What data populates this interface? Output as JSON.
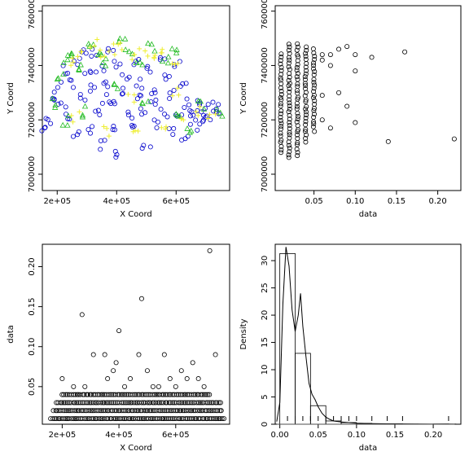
{
  "chart_data": [
    {
      "type": "scatter",
      "xlabel": "X Coord",
      "ylabel": "Y Coord",
      "xlim": [
        150000,
        780000
      ],
      "ylim": [
        6940000,
        7620000
      ],
      "xticks": {
        "values": [
          200000,
          400000,
          600000,
          800000
        ],
        "labels": [
          "2e+05",
          "4e+05",
          "6e+05",
          "8e+05"
        ]
      },
      "yticks": {
        "values": [
          7000000,
          7200000,
          7400000,
          7600000
        ],
        "labels": [
          "7000000",
          "7200000",
          "7400000",
          "7600000"
        ]
      },
      "colors": {
        "circle": "#0000cc",
        "triangle": "#22bb22",
        "plus": "#eeee33"
      },
      "series": [
        {
          "marker": "circle",
          "points": [
            [
              160000,
              7170000
            ],
            [
              175000,
              7190000
            ],
            [
              185000,
              7290000
            ],
            [
              200000,
              7320000
            ],
            [
              215000,
              7260000
            ],
            [
              230000,
              7380000
            ],
            [
              240000,
              7210000
            ],
            [
              255000,
              7330000
            ],
            [
              265000,
              7150000
            ],
            [
              270000,
              7420000
            ],
            [
              280000,
              7280000
            ],
            [
              290000,
              7460000
            ],
            [
              300000,
              7360000
            ],
            [
              310000,
              7170000
            ],
            [
              320000,
              7310000
            ],
            [
              330000,
              7440000
            ],
            [
              340000,
              7220000
            ],
            [
              345000,
              7390000
            ],
            [
              355000,
              7110000
            ],
            [
              365000,
              7280000
            ],
            [
              370000,
              7340000
            ],
            [
              380000,
              7470000
            ],
            [
              390000,
              7180000
            ],
            [
              395000,
              7250000
            ],
            [
              405000,
              7400000
            ],
            [
              410000,
              7080000
            ],
            [
              420000,
              7300000
            ],
            [
              430000,
              7350000
            ],
            [
              440000,
              7210000
            ],
            [
              450000,
              7160000
            ],
            [
              460000,
              7420000
            ],
            [
              470000,
              7280000
            ],
            [
              480000,
              7330000
            ],
            [
              490000,
              7240000
            ],
            [
              500000,
              7100000
            ],
            [
              510000,
              7380000
            ],
            [
              520000,
              7270000
            ],
            [
              530000,
              7310000
            ],
            [
              540000,
              7190000
            ],
            [
              550000,
              7440000
            ],
            [
              560000,
              7230000
            ],
            [
              570000,
              7360000
            ],
            [
              580000,
              7150000
            ],
            [
              590000,
              7290000
            ],
            [
              600000,
              7410000
            ],
            [
              610000,
              7210000
            ],
            [
              620000,
              7330000
            ],
            [
              630000,
              7130000
            ],
            [
              640000,
              7260000
            ],
            [
              650000,
              7200000
            ],
            [
              660000,
              7240000
            ],
            [
              670000,
              7180000
            ],
            [
              680000,
              7270000
            ],
            [
              690000,
              7210000
            ],
            [
              700000,
              7230000
            ],
            [
              710000,
              7250000
            ],
            [
              725000,
              7220000
            ],
            [
              740000,
              7240000
            ]
          ]
        },
        {
          "marker": "triangle",
          "points": [
            [
              190000,
              7260000
            ],
            [
              215000,
              7360000
            ],
            [
              235000,
              7420000
            ],
            [
              260000,
              7450000
            ],
            [
              285000,
              7390000
            ],
            [
              310000,
              7470000
            ],
            [
              340000,
              7450000
            ],
            [
              365000,
              7410000
            ],
            [
              420000,
              7490000
            ],
            [
              445000,
              7460000
            ],
            [
              480000,
              7410000
            ],
            [
              520000,
              7470000
            ],
            [
              560000,
              7420000
            ],
            [
              590000,
              7450000
            ],
            [
              610000,
              7210000
            ],
            [
              650000,
              7170000
            ],
            [
              690000,
              7250000
            ],
            [
              745000,
              7230000
            ],
            [
              230000,
              7200000
            ],
            [
              300000,
              7230000
            ],
            [
              400000,
              7330000
            ],
            [
              500000,
              7260000
            ]
          ]
        },
        {
          "marker": "plus",
          "points": [
            [
              240000,
              7420000
            ],
            [
              280000,
              7440000
            ],
            [
              320000,
              7480000
            ],
            [
              350000,
              7440000
            ],
            [
              380000,
              7460000
            ],
            [
              410000,
              7470000
            ],
            [
              450000,
              7430000
            ],
            [
              490000,
              7450000
            ],
            [
              530000,
              7440000
            ],
            [
              560000,
              7460000
            ],
            [
              600000,
              7420000
            ],
            [
              630000,
              7200000
            ],
            [
              670000,
              7230000
            ],
            [
              720000,
              7220000
            ],
            [
              560000,
              7160000
            ],
            [
              460000,
              7150000
            ],
            [
              360000,
              7160000
            ],
            [
              260000,
              7210000
            ],
            [
              600000,
              7300000
            ],
            [
              450000,
              7280000
            ]
          ]
        }
      ]
    },
    {
      "type": "scatter",
      "xlabel": "data",
      "ylabel": "Y Coord",
      "xlim": [
        0.003,
        0.228
      ],
      "ylim": [
        6940000,
        7620000
      ],
      "xticks": {
        "values": [
          0.05,
          0.1,
          0.15,
          0.2
        ],
        "labels": [
          "0.05",
          "0.10",
          "0.15",
          "0.20"
        ]
      },
      "yticks": {
        "values": [
          7000000,
          7200000,
          7400000,
          7600000
        ],
        "labels": [
          "7000000",
          "7200000",
          "7400000",
          "7600000"
        ]
      },
      "columns": [
        {
          "x": 0.01,
          "ymin": 7080000,
          "ymax": 7450000
        },
        {
          "x": 0.02,
          "ymin": 7060000,
          "ymax": 7480000
        },
        {
          "x": 0.03,
          "ymin": 7070000,
          "ymax": 7480000
        },
        {
          "x": 0.04,
          "ymin": 7120000,
          "ymax": 7470000
        },
        {
          "x": 0.05,
          "ymin": 7160000,
          "ymax": 7460000
        }
      ],
      "points": [
        [
          0.06,
          7440000
        ],
        [
          0.06,
          7200000
        ],
        [
          0.06,
          7420000
        ],
        [
          0.06,
          7290000
        ],
        [
          0.07,
          7170000
        ],
        [
          0.07,
          7440000
        ],
        [
          0.07,
          7400000
        ],
        [
          0.08,
          7300000
        ],
        [
          0.08,
          7460000
        ],
        [
          0.09,
          7250000
        ],
        [
          0.09,
          7470000
        ],
        [
          0.1,
          7190000
        ],
        [
          0.1,
          7380000
        ],
        [
          0.1,
          7440000
        ],
        [
          0.12,
          7430000
        ],
        [
          0.14,
          7120000
        ],
        [
          0.16,
          7450000
        ],
        [
          0.22,
          7130000
        ]
      ]
    },
    {
      "type": "scatter",
      "xlabel": "X Coord",
      "ylabel": "data",
      "xlim": [
        130000,
        790000
      ],
      "ylim": [
        0.003,
        0.228
      ],
      "xticks": {
        "values": [
          200000,
          400000,
          600000,
          800000
        ],
        "labels": [
          "2e+05",
          "4e+05",
          "6e+05",
          "8e+05"
        ]
      },
      "yticks": {
        "values": [
          0.05,
          0.1,
          0.15,
          0.2
        ],
        "labels": [
          "0.05",
          "0.10",
          "0.15",
          "0.20"
        ]
      },
      "rows": [
        {
          "y": 0.01,
          "xmin": 160000,
          "xmax": 775000
        },
        {
          "y": 0.02,
          "xmin": 170000,
          "xmax": 765000
        },
        {
          "y": 0.03,
          "xmin": 180000,
          "xmax": 760000
        },
        {
          "y": 0.04,
          "xmin": 200000,
          "xmax": 720000
        }
      ],
      "points": [
        [
          200000,
          0.06
        ],
        [
          240000,
          0.05
        ],
        [
          280000,
          0.05
        ],
        [
          310000,
          0.09
        ],
        [
          360000,
          0.06
        ],
        [
          390000,
          0.08
        ],
        [
          400000,
          0.12
        ],
        [
          420000,
          0.05
        ],
        [
          470000,
          0.09
        ],
        [
          480000,
          0.16
        ],
        [
          500000,
          0.07
        ],
        [
          540000,
          0.05
        ],
        [
          560000,
          0.09
        ],
        [
          600000,
          0.05
        ],
        [
          640000,
          0.06
        ],
        [
          660000,
          0.08
        ],
        [
          700000,
          0.05
        ],
        [
          720000,
          0.22
        ],
        [
          740000,
          0.09
        ],
        [
          270000,
          0.14
        ],
        [
          350000,
          0.09
        ],
        [
          440000,
          0.06
        ],
        [
          520000,
          0.05
        ],
        [
          620000,
          0.07
        ],
        [
          380000,
          0.07
        ],
        [
          580000,
          0.06
        ],
        [
          680000,
          0.06
        ]
      ]
    },
    {
      "type": "bar",
      "subtype": "histogram",
      "xlabel": "data",
      "ylabel": "Density",
      "xlim": [
        -0.006,
        0.236
      ],
      "ylim": [
        0,
        33
      ],
      "xticks": {
        "values": [
          0.0,
          0.05,
          0.1,
          0.15,
          0.2
        ],
        "labels": [
          "0.00",
          "0.05",
          "0.10",
          "0.15",
          "0.20"
        ]
      },
      "yticks": {
        "values": [
          0,
          5,
          10,
          15,
          20,
          25,
          30
        ],
        "labels": [
          "0",
          "5",
          "10",
          "15",
          "20",
          "25",
          "30"
        ]
      },
      "bins": [
        {
          "from": 0.0,
          "to": 0.02,
          "density": 31.3
        },
        {
          "from": 0.02,
          "to": 0.04,
          "density": 13.0
        },
        {
          "from": 0.04,
          "to": 0.06,
          "density": 3.4
        },
        {
          "from": 0.06,
          "to": 0.08,
          "density": 0.6
        },
        {
          "from": 0.08,
          "to": 0.1,
          "density": 0.3
        },
        {
          "from": 0.1,
          "to": 0.12,
          "density": 0.15
        },
        {
          "from": 0.12,
          "to": 0.14,
          "density": 0.05
        },
        {
          "from": 0.14,
          "to": 0.16,
          "density": 0.08
        },
        {
          "from": 0.16,
          "to": 0.18,
          "density": 0.03
        },
        {
          "from": 0.18,
          "to": 0.2,
          "density": 0.02
        },
        {
          "from": 0.2,
          "to": 0.22,
          "density": 0.04
        }
      ],
      "density_curve": [
        [
          -0.004,
          0.5
        ],
        [
          0.0,
          4
        ],
        [
          0.004,
          22
        ],
        [
          0.008,
          32.5
        ],
        [
          0.012,
          29
        ],
        [
          0.016,
          21
        ],
        [
          0.02,
          17
        ],
        [
          0.024,
          20
        ],
        [
          0.027,
          24
        ],
        [
          0.03,
          18
        ],
        [
          0.034,
          12.5
        ],
        [
          0.038,
          7.5
        ],
        [
          0.042,
          5.5
        ],
        [
          0.046,
          4.5
        ],
        [
          0.05,
          3.2
        ],
        [
          0.055,
          2.0
        ],
        [
          0.06,
          1.3
        ],
        [
          0.065,
          0.9
        ],
        [
          0.07,
          0.6
        ],
        [
          0.08,
          0.4
        ],
        [
          0.09,
          0.3
        ],
        [
          0.1,
          0.2
        ],
        [
          0.12,
          0.1
        ],
        [
          0.14,
          0.08
        ],
        [
          0.16,
          0.06
        ],
        [
          0.18,
          0.03
        ],
        [
          0.2,
          0.02
        ],
        [
          0.22,
          0.04
        ],
        [
          0.23,
          0.01
        ]
      ],
      "rug": [
        0.01,
        0.02,
        0.03,
        0.04,
        0.05,
        0.06,
        0.07,
        0.08,
        0.09,
        0.1,
        0.12,
        0.14,
        0.16,
        0.22
      ]
    }
  ]
}
